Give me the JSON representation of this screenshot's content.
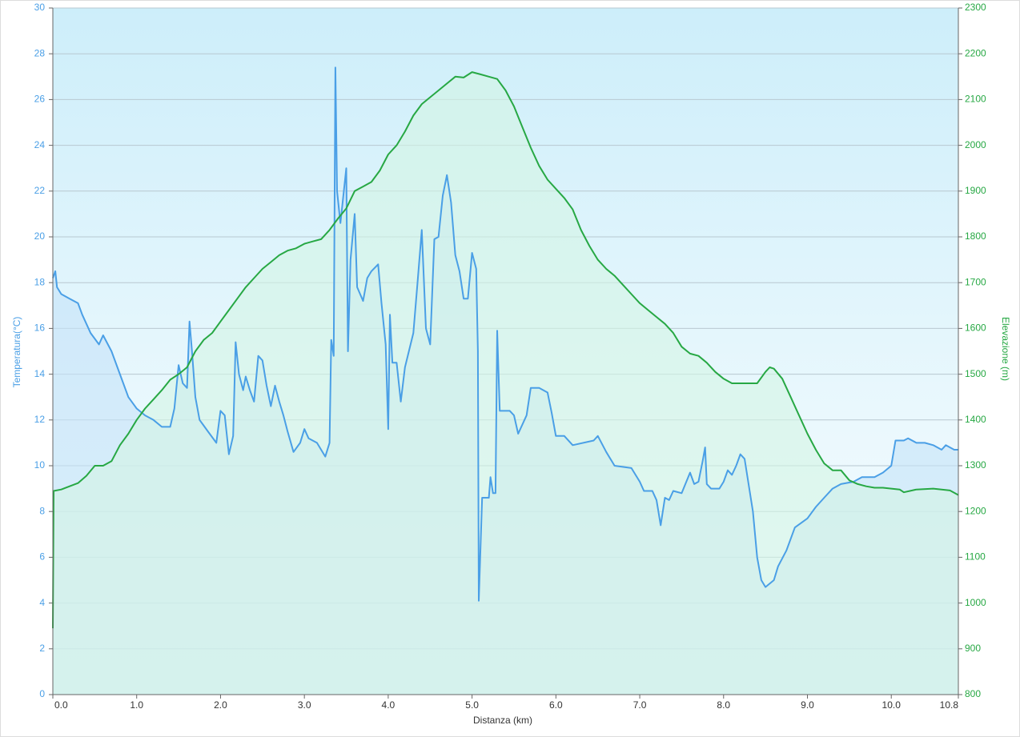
{
  "chart_data": {
    "type": "line",
    "xlabel": "Distanza  (km)",
    "ylabel": "Temperatura(°C)",
    "y2label": "Elevazione (m)",
    "xlim": [
      0,
      10.8
    ],
    "xticks": [
      {
        "value": 0,
        "label": "0.0"
      },
      {
        "value": 1,
        "label": "1.0"
      },
      {
        "value": 2,
        "label": "2.0"
      },
      {
        "value": 3,
        "label": "3.0"
      },
      {
        "value": 4,
        "label": "4.0"
      },
      {
        "value": 5,
        "label": "5.0"
      },
      {
        "value": 6,
        "label": "6.0"
      },
      {
        "value": 7,
        "label": "7.0"
      },
      {
        "value": 8,
        "label": "8.0"
      },
      {
        "value": 9,
        "label": "9.0"
      },
      {
        "value": 10,
        "label": "10.0"
      },
      10.8
    ],
    "ylim": [
      0,
      30
    ],
    "yticks": [
      0,
      2,
      4,
      6,
      8,
      10,
      12,
      14,
      16,
      18,
      20,
      22,
      24,
      26,
      28,
      30
    ],
    "y2lim": [
      800,
      2300
    ],
    "y2ticks": [
      800,
      900,
      1000,
      1100,
      1200,
      1300,
      1400,
      1500,
      1600,
      1700,
      1800,
      1900,
      2000,
      2100,
      2200,
      2300
    ],
    "grid": true,
    "series": [
      {
        "name": "Temperatura",
        "color": "#4a9fe6",
        "area": "#c4e2f8",
        "x": [
          0,
          0.03,
          0.05,
          0.1,
          0.2,
          0.3,
          0.35,
          0.45,
          0.55,
          0.6,
          0.7,
          0.8,
          0.9,
          1.0,
          1.1,
          1.2,
          1.3,
          1.4,
          1.45,
          1.5,
          1.55,
          1.6,
          1.63,
          1.66,
          1.7,
          1.75,
          1.85,
          1.95,
          2.0,
          2.05,
          2.1,
          2.15,
          2.18,
          2.22,
          2.27,
          2.3,
          2.35,
          2.4,
          2.45,
          2.5,
          2.55,
          2.6,
          2.65,
          2.7,
          2.75,
          2.8,
          2.87,
          2.95,
          3.0,
          3.05,
          3.15,
          3.25,
          3.3,
          3.32,
          3.35,
          3.37,
          3.39,
          3.43,
          3.5,
          3.52,
          3.55,
          3.6,
          3.63,
          3.7,
          3.75,
          3.8,
          3.88,
          3.92,
          3.97,
          4.0,
          4.02,
          4.05,
          4.1,
          4.15,
          4.2,
          4.3,
          4.35,
          4.4,
          4.45,
          4.5,
          4.55,
          4.6,
          4.65,
          4.7,
          4.75,
          4.8,
          4.85,
          4.9,
          4.95,
          5.0,
          5.05,
          5.07,
          5.08,
          5.12,
          5.2,
          5.22,
          5.25,
          5.28,
          5.3,
          5.33,
          5.45,
          5.5,
          5.55,
          5.65,
          5.7,
          5.8,
          5.9,
          5.95,
          6.0,
          6.1,
          6.2,
          6.45,
          6.5,
          6.6,
          6.7,
          6.9,
          7.0,
          7.05,
          7.15,
          7.2,
          7.25,
          7.3,
          7.35,
          7.4,
          7.5,
          7.6,
          7.65,
          7.7,
          7.75,
          7.78,
          7.8,
          7.85,
          7.95,
          8.0,
          8.05,
          8.1,
          8.15,
          8.2,
          8.25,
          8.35,
          8.4,
          8.45,
          8.5,
          8.6,
          8.65,
          8.75,
          8.85,
          9.0,
          9.1,
          9.2,
          9.3,
          9.4,
          9.55,
          9.65,
          9.8,
          9.9,
          10.0,
          10.05,
          10.15,
          10.2,
          10.3,
          10.4,
          10.5,
          10.6,
          10.65,
          10.75,
          10.8
        ],
        "values": [
          18.2,
          18.5,
          17.8,
          17.5,
          17.3,
          17.1,
          16.6,
          15.8,
          15.3,
          15.7,
          15.0,
          14.0,
          13.0,
          12.5,
          12.2,
          12.0,
          11.7,
          11.7,
          12.5,
          14.4,
          13.6,
          13.4,
          16.3,
          15.0,
          13.0,
          12.0,
          11.5,
          11.0,
          12.4,
          12.2,
          10.5,
          11.3,
          15.4,
          14.0,
          13.3,
          13.9,
          13.3,
          12.8,
          14.8,
          14.6,
          13.5,
          12.6,
          13.5,
          12.8,
          12.2,
          11.5,
          10.6,
          11.0,
          11.6,
          11.2,
          11.0,
          10.4,
          11.0,
          15.5,
          14.8,
          27.4,
          22.0,
          20.6,
          23.0,
          15.0,
          19.0,
          21.0,
          17.8,
          17.2,
          18.2,
          18.5,
          18.8,
          17.1,
          15.3,
          11.6,
          16.6,
          14.5,
          14.5,
          12.8,
          14.3,
          15.8,
          18.0,
          20.3,
          16.0,
          15.3,
          19.9,
          20.0,
          21.8,
          22.7,
          21.5,
          19.2,
          18.5,
          17.3,
          17.3,
          19.3,
          18.6,
          15.0,
          4.1,
          8.6,
          8.6,
          9.5,
          8.8,
          8.8,
          15.9,
          12.4,
          12.4,
          12.2,
          11.4,
          12.2,
          13.4,
          13.4,
          13.2,
          12.3,
          11.3,
          11.3,
          10.9,
          11.1,
          11.3,
          10.6,
          10.0,
          9.9,
          9.3,
          8.9,
          8.9,
          8.5,
          7.4,
          8.6,
          8.5,
          8.9,
          8.8,
          9.7,
          9.2,
          9.3,
          10.2,
          10.8,
          9.2,
          9.0,
          9.0,
          9.3,
          9.8,
          9.6,
          10.0,
          10.5,
          10.3,
          8.0,
          6.0,
          5.0,
          4.7,
          5.0,
          5.6,
          6.3,
          7.3,
          7.7,
          8.2,
          8.6,
          9.0,
          9.2,
          9.3,
          9.5,
          9.5,
          9.7,
          10.0,
          11.1,
          11.1,
          11.2,
          11.0,
          11.0,
          10.9,
          10.7,
          10.9,
          10.7,
          10.7
        ]
      },
      {
        "name": "Elevazione",
        "color": "#27a844",
        "area": "#d4f5e4",
        "axis": "y2",
        "x": [
          0,
          0.01,
          0.1,
          0.2,
          0.3,
          0.4,
          0.5,
          0.6,
          0.7,
          0.8,
          0.9,
          1.0,
          1.1,
          1.2,
          1.3,
          1.4,
          1.5,
          1.6,
          1.7,
          1.8,
          1.9,
          2.0,
          2.1,
          2.2,
          2.3,
          2.4,
          2.5,
          2.6,
          2.7,
          2.8,
          2.9,
          3.0,
          3.1,
          3.2,
          3.3,
          3.4,
          3.5,
          3.6,
          3.7,
          3.8,
          3.9,
          4.0,
          4.1,
          4.2,
          4.3,
          4.4,
          4.5,
          4.6,
          4.7,
          4.8,
          4.9,
          5.0,
          5.1,
          5.2,
          5.3,
          5.4,
          5.5,
          5.6,
          5.7,
          5.8,
          5.9,
          6.0,
          6.1,
          6.2,
          6.3,
          6.4,
          6.5,
          6.6,
          6.7,
          6.8,
          6.9,
          7.0,
          7.1,
          7.2,
          7.3,
          7.4,
          7.5,
          7.6,
          7.7,
          7.8,
          7.9,
          8.0,
          8.1,
          8.2,
          8.3,
          8.4,
          8.5,
          8.55,
          8.6,
          8.7,
          8.8,
          8.9,
          9.0,
          9.1,
          9.2,
          9.3,
          9.4,
          9.5,
          9.6,
          9.7,
          9.8,
          9.9,
          10.0,
          10.1,
          10.15,
          10.3,
          10.5,
          10.6,
          10.7,
          10.8
        ],
        "values": [
          945,
          1245,
          1248,
          1255,
          1262,
          1278,
          1300,
          1300,
          1310,
          1345,
          1370,
          1400,
          1425,
          1445,
          1465,
          1488,
          1500,
          1515,
          1550,
          1575,
          1590,
          1615,
          1640,
          1665,
          1690,
          1710,
          1730,
          1745,
          1760,
          1770,
          1775,
          1785,
          1790,
          1795,
          1815,
          1840,
          1862,
          1900,
          1910,
          1920,
          1945,
          1980,
          2000,
          2030,
          2065,
          2090,
          2105,
          2120,
          2135,
          2150,
          2148,
          2160,
          2155,
          2150,
          2145,
          2120,
          2085,
          2040,
          1995,
          1955,
          1925,
          1905,
          1885,
          1860,
          1815,
          1780,
          1750,
          1730,
          1715,
          1695,
          1675,
          1655,
          1640,
          1625,
          1610,
          1590,
          1560,
          1545,
          1540,
          1525,
          1505,
          1490,
          1480,
          1480,
          1480,
          1480,
          1505,
          1515,
          1512,
          1490,
          1450,
          1410,
          1370,
          1335,
          1305,
          1290,
          1290,
          1268,
          1260,
          1255,
          1252,
          1252,
          1250,
          1248,
          1242,
          1248,
          1250,
          1248,
          1246,
          1236
        ]
      }
    ]
  }
}
